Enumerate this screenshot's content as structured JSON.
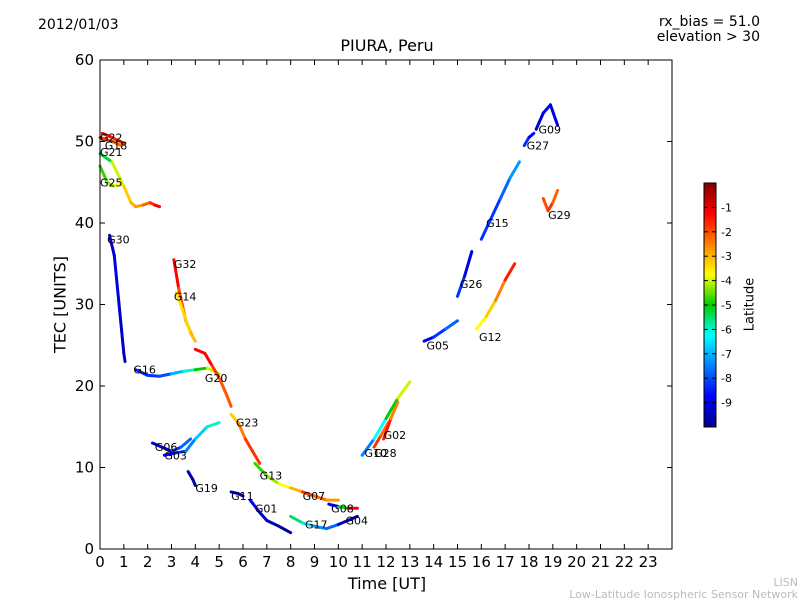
{
  "header": {
    "date": "2012/01/03",
    "rx_bias": "rx_bias = 51.0",
    "elevation": "elevation > 30"
  },
  "footer": {
    "network_short": "LISN",
    "network_full": "Low-Latitude Ionospheric Sensor Network"
  },
  "colorbar": {
    "label": "Latitude",
    "ticks": [
      "-1",
      "-2",
      "-3",
      "-4",
      "-5",
      "-6",
      "-7",
      "-8",
      "-9"
    ],
    "range": [
      -10,
      0
    ],
    "colormap": "jet"
  },
  "chart_data": {
    "type": "scatter",
    "title": "PIURA, Peru",
    "xlabel": "Time [UT]",
    "ylabel": "TEC [UNITS]",
    "xlim": [
      0,
      24
    ],
    "ylim": [
      0,
      60
    ],
    "xticks": [
      "0",
      "1",
      "2",
      "3",
      "4",
      "5",
      "6",
      "7",
      "8",
      "9",
      "10",
      "11",
      "12",
      "13",
      "14",
      "15",
      "16",
      "17",
      "18",
      "19",
      "20",
      "21",
      "22",
      "23"
    ],
    "yticks": [
      "0",
      "10",
      "20",
      "30",
      "40",
      "50",
      "60"
    ],
    "grid": false,
    "series": [
      {
        "name": "G22",
        "label_at": [
          0.0,
          50.5
        ],
        "points": [
          [
            0.0,
            50.5,
            -1.5
          ],
          [
            0.5,
            50.0,
            -2.0
          ],
          [
            0.9,
            49.5,
            -2.5
          ]
        ]
      },
      {
        "name": "G18",
        "label_at": [
          0.2,
          49.5
        ],
        "points": [
          [
            0.1,
            51.0,
            -1.0
          ],
          [
            0.5,
            50.5,
            -1.2
          ],
          [
            1.0,
            49.8,
            -2.0
          ]
        ]
      },
      {
        "name": "G21",
        "label_at": [
          0.0,
          48.7
        ],
        "points": [
          [
            0.0,
            48.5,
            -6.0
          ],
          [
            0.5,
            47.5,
            -4.5
          ],
          [
            1.0,
            44.5,
            -3.5
          ],
          [
            1.3,
            42.5,
            -3.0
          ],
          [
            1.5,
            42.0,
            -3.0
          ],
          [
            1.8,
            42.2,
            -2.5
          ],
          [
            2.1,
            42.5,
            -2.0
          ],
          [
            2.3,
            42.2,
            -1.5
          ],
          [
            2.5,
            42.0,
            -1.0
          ]
        ]
      },
      {
        "name": "G25",
        "label_at": [
          0.0,
          45.0
        ],
        "points": [
          [
            0.0,
            47.0,
            -5.0
          ],
          [
            0.3,
            45.0,
            -4.5
          ],
          [
            0.6,
            44.5,
            -4.0
          ],
          [
            0.8,
            44.8,
            -3.5
          ]
        ]
      },
      {
        "name": "G30",
        "label_at": [
          0.3,
          38.0
        ],
        "points": [
          [
            0.4,
            38.5,
            -9.5
          ],
          [
            0.6,
            36.0,
            -9.0
          ],
          [
            0.8,
            30.0,
            -9.2
          ],
          [
            1.0,
            24.0,
            -9.5
          ],
          [
            1.05,
            23.0,
            -9.8
          ]
        ]
      },
      {
        "name": "G32",
        "label_at": [
          3.1,
          35.0
        ],
        "points": [
          [
            3.1,
            35.5,
            -1.0
          ],
          [
            3.3,
            32.0,
            -1.5
          ],
          [
            3.6,
            28.0,
            -2.5
          ],
          [
            3.9,
            26.0,
            -3.0
          ]
        ]
      },
      {
        "name": "G14",
        "label_at": [
          3.1,
          31.0
        ],
        "points": [
          [
            3.2,
            31.5,
            -3.5
          ],
          [
            3.5,
            29.0,
            -3.5
          ],
          [
            3.8,
            26.5,
            -3.2
          ],
          [
            4.0,
            25.5,
            -3.0
          ]
        ]
      },
      {
        "name": "G16",
        "label_at": [
          1.4,
          22.0
        ],
        "points": [
          [
            1.5,
            22.0,
            -9.0
          ],
          [
            2.0,
            21.3,
            -8.0
          ],
          [
            2.5,
            21.2,
            -8.5
          ],
          [
            3.0,
            21.5,
            -7.5
          ],
          [
            3.5,
            21.8,
            -6.5
          ],
          [
            4.0,
            22.0,
            -5.5
          ],
          [
            4.5,
            22.2,
            -4.5
          ],
          [
            5.0,
            21.5,
            -3.5
          ]
        ]
      },
      {
        "name": "G20",
        "label_at": [
          4.4,
          21.0
        ],
        "points": [
          [
            4.0,
            24.5,
            -1.5
          ],
          [
            4.4,
            24.0,
            -1.0
          ],
          [
            4.7,
            22.5,
            -1.5
          ],
          [
            5.0,
            21.0,
            -2.0
          ],
          [
            5.3,
            19.0,
            -2.2
          ],
          [
            5.5,
            17.5,
            -2.0
          ]
        ]
      },
      {
        "name": "G23",
        "label_at": [
          5.7,
          15.5
        ],
        "points": [
          [
            5.5,
            16.5,
            -3.5
          ],
          [
            5.8,
            15.5,
            -3.0
          ],
          [
            6.1,
            13.5,
            -2.0
          ],
          [
            6.4,
            12.0,
            -1.5
          ],
          [
            6.7,
            10.5,
            -2.0
          ]
        ]
      },
      {
        "name": "G06",
        "label_at": [
          2.3,
          12.5
        ],
        "points": [
          [
            2.2,
            13.0,
            -9.5
          ],
          [
            2.6,
            12.5,
            -9.0
          ],
          [
            3.0,
            12.0,
            -8.5
          ],
          [
            3.4,
            12.5,
            -8.0
          ],
          [
            3.8,
            13.5,
            -7.5
          ]
        ]
      },
      {
        "name": "G03",
        "label_at": [
          2.7,
          11.5
        ],
        "points": [
          [
            2.7,
            11.5,
            -9.0
          ],
          [
            3.2,
            11.8,
            -8.5
          ],
          [
            3.6,
            12.0,
            -8.0
          ],
          [
            4.0,
            13.5,
            -7.0
          ],
          [
            4.5,
            15.0,
            -6.5
          ],
          [
            5.0,
            15.5,
            -5.5
          ]
        ]
      },
      {
        "name": "G19",
        "label_at": [
          4.0,
          7.5
        ],
        "points": [
          [
            3.7,
            9.5,
            -9.5
          ],
          [
            3.9,
            8.5,
            -9.8
          ],
          [
            4.0,
            7.8,
            -9.8
          ]
        ]
      },
      {
        "name": "G13",
        "label_at": [
          6.7,
          9.0
        ],
        "points": [
          [
            6.5,
            10.5,
            -5.0
          ],
          [
            7.0,
            9.0,
            -4.5
          ],
          [
            7.5,
            8.0,
            -4.0
          ],
          [
            8.0,
            7.5,
            -3.5
          ],
          [
            8.5,
            7.0,
            -2.5
          ]
        ]
      },
      {
        "name": "G11",
        "label_at": [
          5.5,
          6.5
        ],
        "points": [
          [
            5.5,
            7.0,
            -9.0
          ],
          [
            5.8,
            6.8,
            -9.5
          ],
          [
            6.0,
            6.5,
            -9.8
          ]
        ]
      },
      {
        "name": "G01",
        "label_at": [
          6.5,
          5.0
        ],
        "points": [
          [
            6.3,
            6.0,
            -8.5
          ],
          [
            6.7,
            4.5,
            -9.0
          ],
          [
            7.0,
            3.5,
            -9.5
          ],
          [
            7.5,
            2.8,
            -9.8
          ],
          [
            8.0,
            2.0,
            -9.8
          ]
        ]
      },
      {
        "name": "G07",
        "label_at": [
          8.5,
          6.5
        ],
        "points": [
          [
            8.5,
            7.0,
            -1.5
          ],
          [
            9.0,
            6.5,
            -2.0
          ],
          [
            9.5,
            6.0,
            -2.5
          ],
          [
            10.0,
            6.0,
            -3.0
          ]
        ]
      },
      {
        "name": "G08",
        "label_at": [
          9.7,
          5.0
        ],
        "points": [
          [
            9.6,
            5.5,
            -8.5
          ],
          [
            10.0,
            5.2,
            -9.0
          ],
          [
            10.4,
            5.0,
            -1.5
          ],
          [
            10.8,
            5.0,
            -1.0
          ]
        ]
      },
      {
        "name": "G17",
        "label_at": [
          8.6,
          3.0
        ],
        "points": [
          [
            8.0,
            4.0,
            -5.0
          ],
          [
            8.5,
            3.2,
            -6.0
          ],
          [
            9.0,
            2.8,
            -7.0
          ],
          [
            9.5,
            2.5,
            -7.5
          ],
          [
            10.0,
            3.0,
            -8.0
          ]
        ]
      },
      {
        "name": "G04",
        "label_at": [
          10.3,
          3.5
        ],
        "points": [
          [
            10.0,
            3.0,
            -9.0
          ],
          [
            10.4,
            3.5,
            -9.5
          ],
          [
            10.8,
            4.0,
            -9.8
          ]
        ]
      },
      {
        "name": "G10",
        "label_at": [
          11.1,
          11.8
        ],
        "points": [
          [
            11.0,
            11.5,
            -8.0
          ],
          [
            11.5,
            13.5,
            -7.0
          ],
          [
            12.0,
            16.0,
            -5.5
          ],
          [
            12.5,
            18.5,
            -4.5
          ],
          [
            13.0,
            20.5,
            -3.5
          ]
        ]
      },
      {
        "name": "G28",
        "label_at": [
          11.5,
          11.8
        ],
        "points": [
          [
            11.5,
            12.5,
            -1.5
          ],
          [
            11.8,
            14.0,
            -2.0
          ],
          [
            12.1,
            15.5,
            -2.5
          ]
        ]
      },
      {
        "name": "G02",
        "label_at": [
          11.9,
          14.0
        ],
        "points": [
          [
            11.9,
            13.5,
            -1.0
          ],
          [
            12.2,
            16.0,
            -2.0
          ],
          [
            12.5,
            18.0,
            -3.0
          ]
        ]
      },
      {
        "name": "G05",
        "label_at": [
          13.7,
          25.0
        ],
        "points": [
          [
            13.6,
            25.5,
            -9.5
          ],
          [
            14.0,
            26.0,
            -8.5
          ],
          [
            14.5,
            27.0,
            -8.0
          ],
          [
            15.0,
            28.0,
            -7.5
          ]
        ]
      },
      {
        "name": "G26",
        "label_at": [
          15.1,
          32.5
        ],
        "points": [
          [
            15.0,
            31.0,
            -8.0
          ],
          [
            15.3,
            33.5,
            -8.5
          ],
          [
            15.6,
            36.5,
            -9.5
          ]
        ]
      },
      {
        "name": "G12",
        "label_at": [
          15.9,
          26.0
        ],
        "points": [
          [
            15.8,
            27.0,
            -4.0
          ],
          [
            16.2,
            28.5,
            -3.5
          ],
          [
            16.6,
            30.5,
            -3.0
          ],
          [
            17.0,
            33.0,
            -2.0
          ],
          [
            17.4,
            35.0,
            -1.0
          ]
        ]
      },
      {
        "name": "G15",
        "label_at": [
          16.2,
          40.0
        ],
        "points": [
          [
            16.0,
            38.0,
            -8.0
          ],
          [
            16.4,
            40.5,
            -8.5
          ],
          [
            16.8,
            43.0,
            -8.0
          ],
          [
            17.2,
            45.5,
            -7.5
          ],
          [
            17.6,
            47.5,
            -7.0
          ]
        ]
      },
      {
        "name": "G27",
        "label_at": [
          17.9,
          49.5
        ],
        "points": [
          [
            17.8,
            49.5,
            -8.0
          ],
          [
            18.0,
            50.5,
            -8.5
          ],
          [
            18.2,
            51.0,
            -9.0
          ]
        ]
      },
      {
        "name": "G09",
        "label_at": [
          18.4,
          51.5
        ],
        "points": [
          [
            18.3,
            51.5,
            -9.5
          ],
          [
            18.6,
            53.5,
            -9.0
          ],
          [
            18.9,
            54.5,
            -8.5
          ],
          [
            19.2,
            52.0,
            -9.5
          ]
        ]
      },
      {
        "name": "G29",
        "label_at": [
          18.8,
          41.0
        ],
        "points": [
          [
            18.6,
            43.0,
            -2.5
          ],
          [
            18.8,
            41.5,
            -1.5
          ],
          [
            19.0,
            42.5,
            -2.0
          ],
          [
            19.2,
            44.0,
            -2.5
          ]
        ]
      }
    ]
  }
}
